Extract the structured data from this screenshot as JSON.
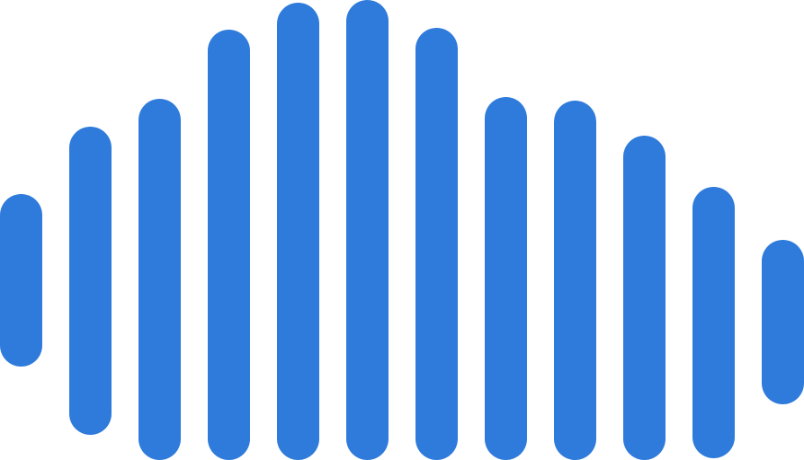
{
  "graphic": {
    "icon": "sound-wave-icon",
    "bar_color": "#2f7bdb",
    "background": "#ffffff"
  }
}
